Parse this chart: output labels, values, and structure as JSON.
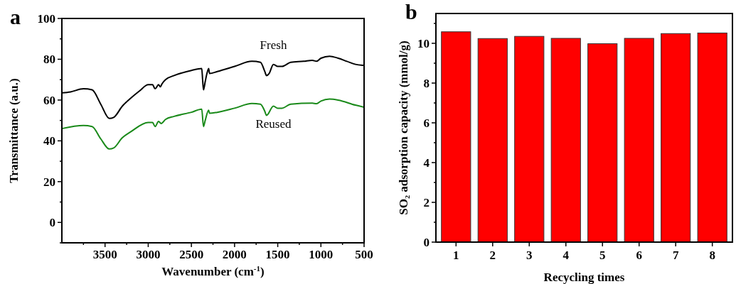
{
  "chart_data": [
    {
      "type": "line",
      "title": "a",
      "xlabel": "Wavenumber (cm$^{-1}$)",
      "ylabel": "Transmittance (a.u.)",
      "xlim": [
        4000,
        500
      ],
      "ylim": [
        -10,
        100
      ],
      "xticks": [
        {
          "value": 3750,
          "label": null
        },
        3500,
        {
          "value": 3250,
          "label": null
        },
        3000,
        {
          "value": 2750,
          "label": null
        },
        2500,
        {
          "value": 2250,
          "label": null
        },
        2000,
        {
          "value": 1750,
          "label": null
        },
        1500,
        {
          "value": 1250,
          "label": null
        },
        1000,
        {
          "value": 750,
          "label": null
        },
        500
      ],
      "yticks": [
        {
          "value": -10,
          "label": null
        },
        0,
        {
          "value": 10,
          "label": null
        },
        20,
        {
          "value": 30,
          "label": null
        },
        40,
        {
          "value": 50,
          "label": null
        },
        60,
        {
          "value": 70,
          "label": null
        },
        80,
        {
          "value": 90,
          "label": null
        },
        100
      ],
      "legend": false,
      "grid": false,
      "series": [
        {
          "name": "Fresh",
          "color": "#000000",
          "x": [
            4000,
            3900,
            3750,
            3650,
            3550,
            3450,
            3400,
            3300,
            3200,
            3100,
            3000,
            2950,
            2920,
            2880,
            2860,
            2840,
            2800,
            2700,
            2500,
            2380,
            2370,
            2360,
            2340,
            2320,
            2300,
            2290,
            2200,
            2000,
            1800,
            1700,
            1650,
            1630,
            1600,
            1550,
            1500,
            1450,
            1350,
            1200,
            1100,
            1050,
            1000,
            900,
            800,
            700,
            600,
            500
          ],
          "values": [
            63.5,
            64,
            65.5,
            65,
            58,
            51,
            51.5,
            57,
            61,
            64.5,
            67.5,
            67.5,
            65.5,
            67.5,
            66.5,
            68,
            70,
            72,
            74.5,
            75.5,
            70,
            65,
            69,
            73,
            75.5,
            73,
            74,
            76.5,
            79,
            78.5,
            74,
            72,
            73,
            77.5,
            76.5,
            76.5,
            78.5,
            79,
            79.5,
            79,
            80.5,
            81.5,
            80.5,
            79,
            77.5,
            77
          ]
        },
        {
          "name": "Reused",
          "color": "#1a8a1a",
          "x": [
            4000,
            3750,
            3650,
            3550,
            3450,
            3400,
            3300,
            3200,
            3000,
            2950,
            2920,
            2880,
            2850,
            2800,
            2700,
            2500,
            2380,
            2360,
            2340,
            2300,
            2290,
            2200,
            2000,
            1800,
            1700,
            1650,
            1630,
            1550,
            1500,
            1450,
            1350,
            1100,
            1050,
            1000,
            900,
            800,
            600,
            500
          ],
          "values": [
            46,
            47.5,
            47,
            41,
            36,
            36.5,
            41.5,
            44.5,
            49,
            49,
            47,
            49.5,
            48.5,
            50.5,
            52,
            54,
            55.5,
            47,
            50,
            55,
            53.5,
            54,
            56,
            58.3,
            58,
            54.5,
            52.5,
            57,
            56,
            56,
            58,
            58.5,
            58.2,
            59.5,
            60.5,
            60,
            57.5,
            56.5
          ]
        }
      ]
    },
    {
      "type": "bar",
      "title": "b",
      "xlabel": "Recycling times",
      "ylabel": "SO₂ adsorption capacity (mmol/g)",
      "categories": [
        "1",
        "2",
        "3",
        "4",
        "5",
        "6",
        "7",
        "8"
      ],
      "values": [
        10.58,
        10.24,
        10.35,
        10.25,
        9.98,
        10.25,
        10.49,
        10.52
      ],
      "color": "#ff0000",
      "ylim": [
        0,
        11.5
      ],
      "yticks": [
        0,
        {
          "value": 1,
          "label": null
        },
        2,
        {
          "value": 3,
          "label": null
        },
        4,
        {
          "value": 5,
          "label": null
        },
        6,
        {
          "value": 7,
          "label": null
        },
        8,
        {
          "value": 9,
          "label": null
        },
        10,
        {
          "value": 11,
          "label": null
        }
      ]
    }
  ]
}
